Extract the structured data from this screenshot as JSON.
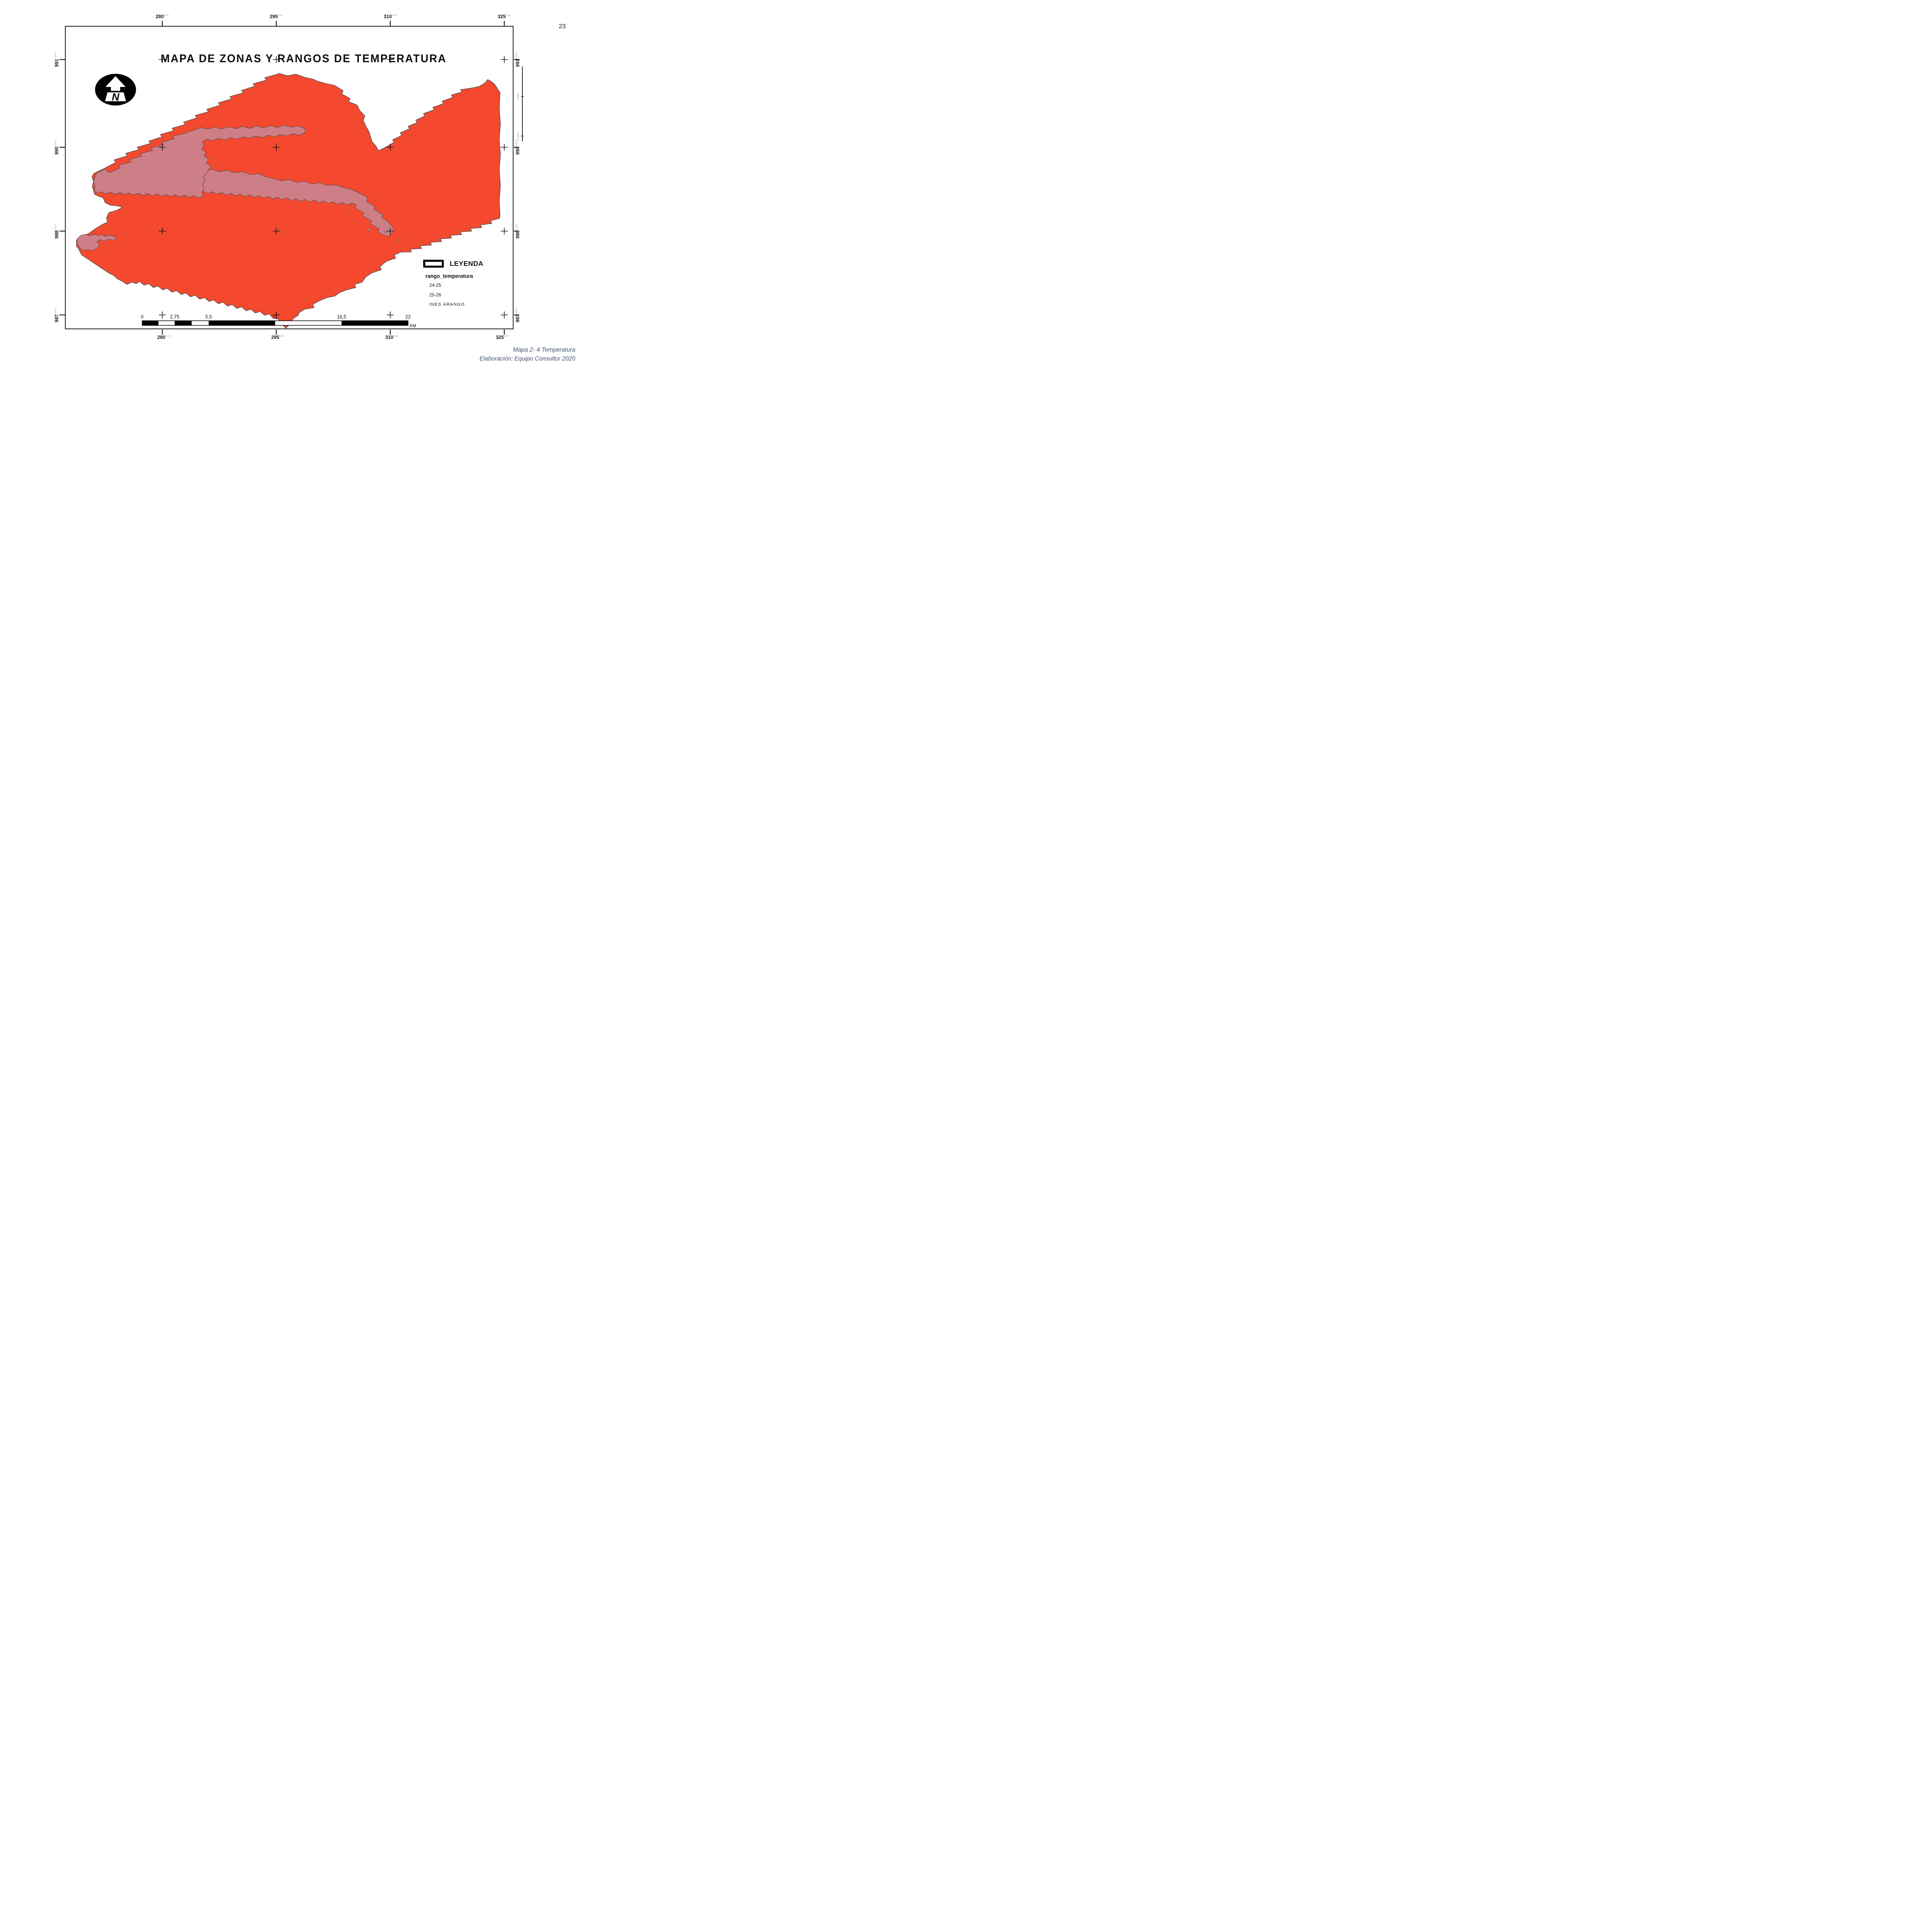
{
  "page_number": "23",
  "map": {
    "title": "MAPA DE ZONAS Y RANGOS DE TEMPERATURA",
    "north_arrow_letter": "N",
    "grid": {
      "eastings": [
        {
          "main": "280",
          "suffix": "000"
        },
        {
          "main": "295",
          "suffix": "000"
        },
        {
          "main": "310",
          "suffix": "000"
        },
        {
          "main": "325",
          "suffix": "000"
        }
      ],
      "northings": [
        {
          "main": "991",
          "suffix": "0000"
        },
        {
          "main": "990",
          "suffix": "0000"
        },
        {
          "main": "988",
          "suffix": "0000"
        },
        {
          "main": "987",
          "suffix": "0000"
        }
      ]
    },
    "graticule_labels": [
      "0°0'0\"",
      "0°10'0\""
    ],
    "scalebar": {
      "tick_labels": [
        "0",
        "2,75",
        "5,5",
        "11",
        "16,5",
        "22"
      ],
      "unit": "KM"
    },
    "legend": {
      "title": "LEYENDA",
      "field_name": "rango_temperatura",
      "items": [
        {
          "label": "24-25"
        },
        {
          "label": "25-26"
        },
        {
          "label": "INES ARANGO"
        }
      ]
    },
    "colors": {
      "zone_24_25": "#CE7E87",
      "zone_25_26": "#F4492F",
      "boundary": "#5E5149",
      "frame": "#1A1A1A",
      "caption_text": "#44546A"
    }
  },
  "caption": {
    "line1": "Mapa 2- 4 Temperatura",
    "line2": "Elaboración: Equipo Consultor 2020"
  }
}
